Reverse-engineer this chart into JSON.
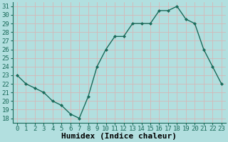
{
  "x": [
    0,
    1,
    2,
    3,
    4,
    5,
    6,
    7,
    8,
    9,
    10,
    11,
    12,
    13,
    14,
    15,
    16,
    17,
    18,
    19,
    20,
    21,
    22,
    23
  ],
  "y": [
    23,
    22,
    21.5,
    21,
    20,
    19.5,
    18.5,
    18,
    20.5,
    24,
    26,
    27.5,
    27.5,
    29,
    29,
    29,
    30.5,
    30.5,
    31,
    29.5,
    29,
    26,
    24,
    22
  ],
  "line_color": "#1a6b5a",
  "marker": "D",
  "marker_size": 2.0,
  "bg_color": "#b2dfdf",
  "grid_color": "#c9e8e8",
  "xlabel": "Humidex (Indice chaleur)",
  "ylabel": "",
  "xlim": [
    -0.5,
    23.5
  ],
  "ylim": [
    17.5,
    31.5
  ],
  "yticks": [
    18,
    19,
    20,
    21,
    22,
    23,
    24,
    25,
    26,
    27,
    28,
    29,
    30,
    31
  ],
  "xticks": [
    0,
    1,
    2,
    3,
    4,
    5,
    6,
    7,
    8,
    9,
    10,
    11,
    12,
    13,
    14,
    15,
    16,
    17,
    18,
    19,
    20,
    21,
    22,
    23
  ],
  "tick_label_fontsize": 6.5,
  "xlabel_fontsize": 8,
  "line_width": 1.0
}
